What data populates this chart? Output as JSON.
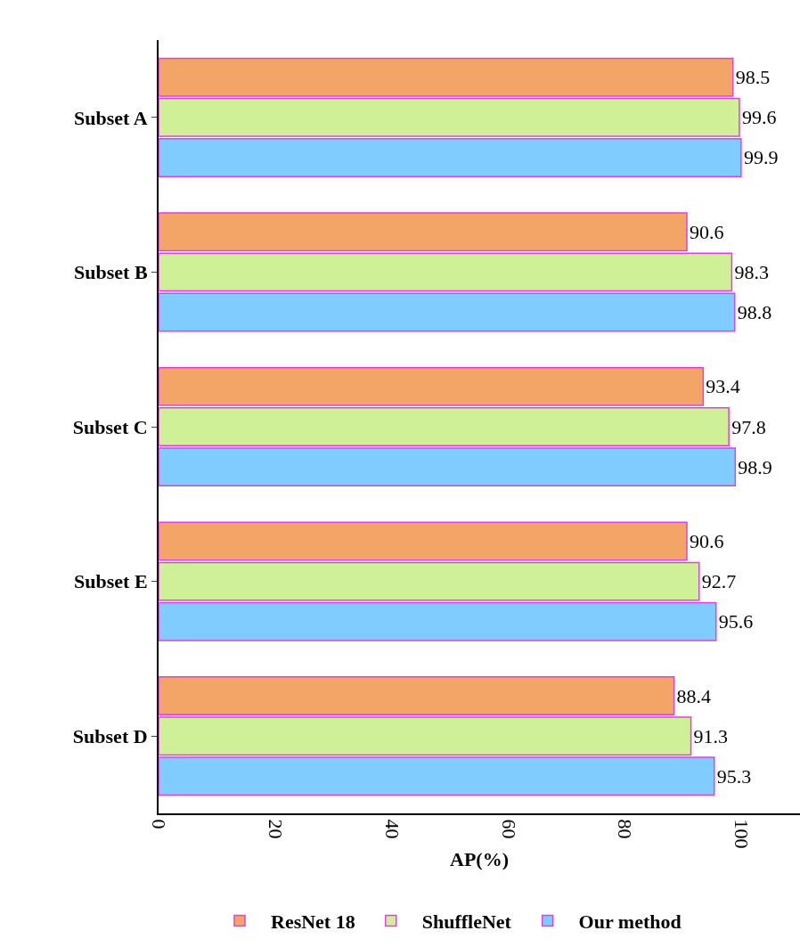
{
  "chart_data": {
    "type": "bar",
    "orientation": "horizontal",
    "xlabel": "AP(%)",
    "categories": [
      "Subset A",
      "Subset B",
      "Subset C",
      "Subset E",
      "Subset D"
    ],
    "series": [
      {
        "name": "ResNet 18",
        "color": "#f2a566",
        "values": [
          98.5,
          90.6,
          93.4,
          90.6,
          88.4
        ]
      },
      {
        "name": "ShuffleNet",
        "color": "#cff096",
        "values": [
          99.6,
          98.3,
          97.8,
          92.7,
          91.3
        ]
      },
      {
        "name": "Our method",
        "color": "#80ccff",
        "values": [
          99.9,
          98.8,
          98.9,
          95.6,
          95.3
        ]
      }
    ],
    "xlim": [
      0,
      110
    ],
    "xticks": [
      0,
      20,
      40,
      60,
      80,
      100
    ],
    "data_labels": true,
    "legend": "bottom"
  }
}
